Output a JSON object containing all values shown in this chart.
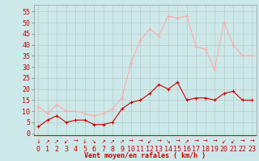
{
  "x": [
    0,
    1,
    2,
    3,
    4,
    5,
    6,
    7,
    8,
    9,
    10,
    11,
    12,
    13,
    14,
    15,
    16,
    17,
    18,
    19,
    20,
    21,
    22,
    23
  ],
  "wind_avg": [
    3,
    6,
    8,
    5,
    6,
    6,
    4,
    4,
    5,
    11,
    14,
    15,
    18,
    22,
    20,
    23,
    15,
    16,
    16,
    15,
    18,
    19,
    15,
    15
  ],
  "wind_gust": [
    12,
    9,
    13,
    10,
    10,
    9,
    8,
    9,
    11,
    16,
    32,
    42,
    47,
    44,
    53,
    52,
    53,
    39,
    38,
    29,
    50,
    40,
    35,
    35
  ],
  "bg_color": "#cce8e8",
  "grid_color": "#bbcccc",
  "line_avg_color": "#cc0000",
  "line_gust_color": "#ffaaaa",
  "xlabel": "Vent moyen/en rafales ( km/h )",
  "xlabel_color": "#cc0000",
  "xlabel_fontsize": 6,
  "ylabel_ticks": [
    0,
    5,
    10,
    15,
    20,
    25,
    30,
    35,
    40,
    45,
    50,
    55
  ],
  "ylim": [
    -1,
    58
  ],
  "xlim": [
    -0.5,
    23.5
  ],
  "tick_fontsize": 6,
  "marker_size": 2.5,
  "arrows": [
    "↓",
    "↗",
    "↗",
    "↙",
    "→",
    "↓",
    "↘",
    "↗",
    "↗",
    "↗",
    "→",
    "→",
    "↙",
    "→",
    "↘",
    "→",
    "↗",
    "→",
    "→",
    "→",
    "↙",
    "↙",
    "→",
    "→"
  ]
}
